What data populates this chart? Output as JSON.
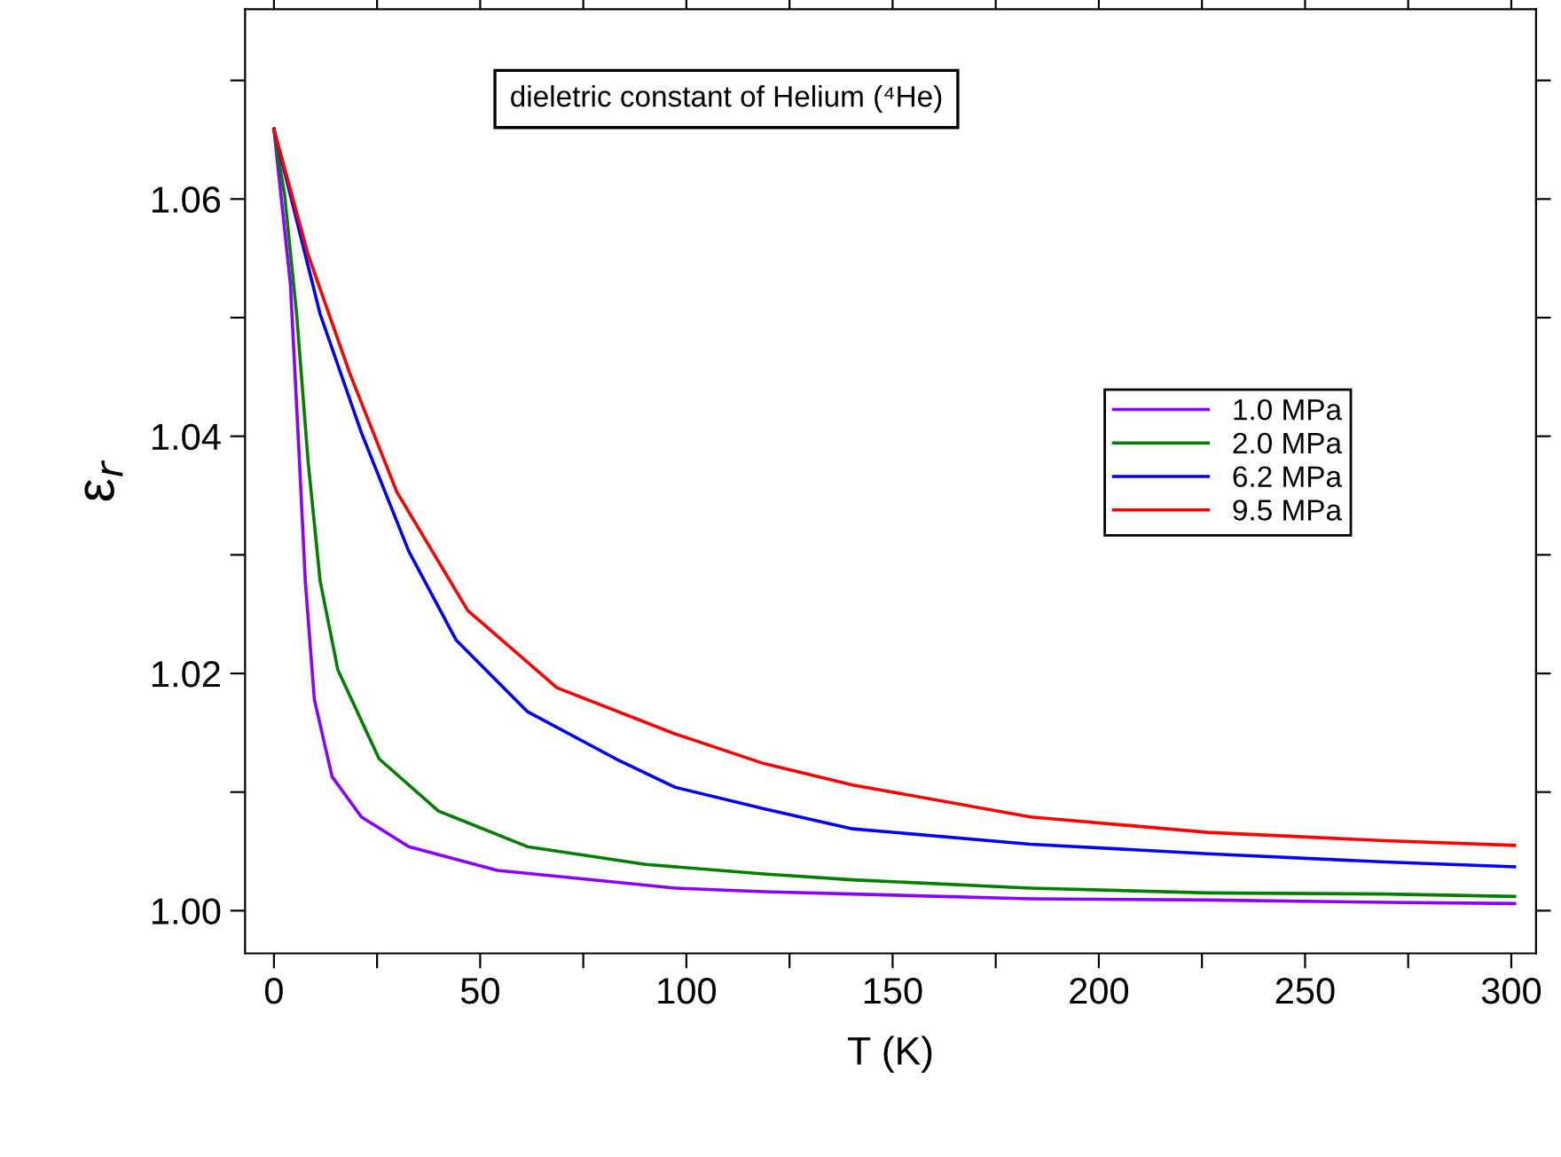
{
  "chart_data": {
    "type": "line",
    "xlabel": "T (K)",
    "ylabel": "ε$_{r}$",
    "annotations": [
      "dieletric constant of Helium (⁴He)"
    ],
    "series": [
      {
        "name": "1.0 MPa",
        "color": "#8b00ff",
        "x": [
          0,
          4.0,
          6.2,
          7.6,
          9.8,
          14.1,
          21.2,
          32.7,
          54.2,
          82.9,
          97.3,
          118.8,
          140.3,
          183.4,
          226.4,
          269.5,
          300.8
        ],
        "values": [
          1.0659,
          1.0528,
          1.0378,
          1.0278,
          1.0178,
          1.0113,
          1.0079,
          1.0054,
          1.0034,
          1.0024,
          1.0019,
          1.0016,
          1.0014,
          1.001,
          1.0009,
          1.0007,
          1.0006
        ]
      },
      {
        "name": "2.0 MPa",
        "color": "#007f00",
        "x": [
          0,
          2.6,
          5.5,
          8.3,
          11.2,
          15.5,
          25.5,
          39.9,
          61.4,
          90.1,
          118.8,
          140.3,
          183.4,
          226.4,
          269.5,
          300.8
        ],
        "values": [
          1.0659,
          1.0603,
          1.0503,
          1.0378,
          1.0278,
          1.0203,
          1.0128,
          1.0084,
          1.0054,
          1.0039,
          1.0031,
          1.0026,
          1.0019,
          1.0015,
          1.0014,
          1.0012
        ]
      },
      {
        "name": "6.2 MPa",
        "color": "#0000ff",
        "x": [
          0,
          4.0,
          11.2,
          21.2,
          32.7,
          44.2,
          61.4,
          82.9,
          97.3,
          118.8,
          140.3,
          183.4,
          226.4,
          269.5,
          300.8
        ],
        "values": [
          1.0659,
          1.0603,
          1.0503,
          1.0403,
          1.0303,
          1.0228,
          1.0168,
          1.0128,
          1.0104,
          1.0086,
          1.0069,
          1.0056,
          1.0048,
          1.0041,
          1.0037
        ]
      },
      {
        "name": "9.5 MPa",
        "color": "#ff0000",
        "x": [
          0,
          8.3,
          18.4,
          29.8,
          47.0,
          68.6,
          97.3,
          118.8,
          140.3,
          183.4,
          226.4,
          269.5,
          300.8
        ],
        "values": [
          1.0659,
          1.0553,
          1.0453,
          1.0353,
          1.0253,
          1.0188,
          1.0149,
          1.0124,
          1.0106,
          1.0079,
          1.0066,
          1.0059,
          1.0055
        ]
      }
    ],
    "xlim": [
      -7,
      306
    ],
    "ylim": [
      0.9964,
      1.076
    ],
    "xticks": [
      0,
      {
        "value": 25,
        "label": null
      },
      50,
      {
        "value": 75,
        "label": null
      },
      100,
      {
        "value": 125,
        "label": null
      },
      150,
      {
        "value": 175,
        "label": null
      },
      200,
      {
        "value": 225,
        "label": null
      },
      250,
      {
        "value": 275,
        "label": null
      },
      300
    ],
    "yticks": [
      {
        "value": 1.0,
        "label": "1.00"
      },
      {
        "value": 1.01,
        "label": null
      },
      {
        "value": 1.02,
        "label": "1.02"
      },
      {
        "value": 1.03,
        "label": null
      },
      {
        "value": 1.04,
        "label": "1.04"
      },
      {
        "value": 1.05,
        "label": null
      },
      {
        "value": 1.06,
        "label": "1.06"
      },
      {
        "value": 1.07,
        "label": null
      }
    ],
    "legend": "right",
    "grid": false,
    "marker": "none",
    "line_style": "solid"
  }
}
